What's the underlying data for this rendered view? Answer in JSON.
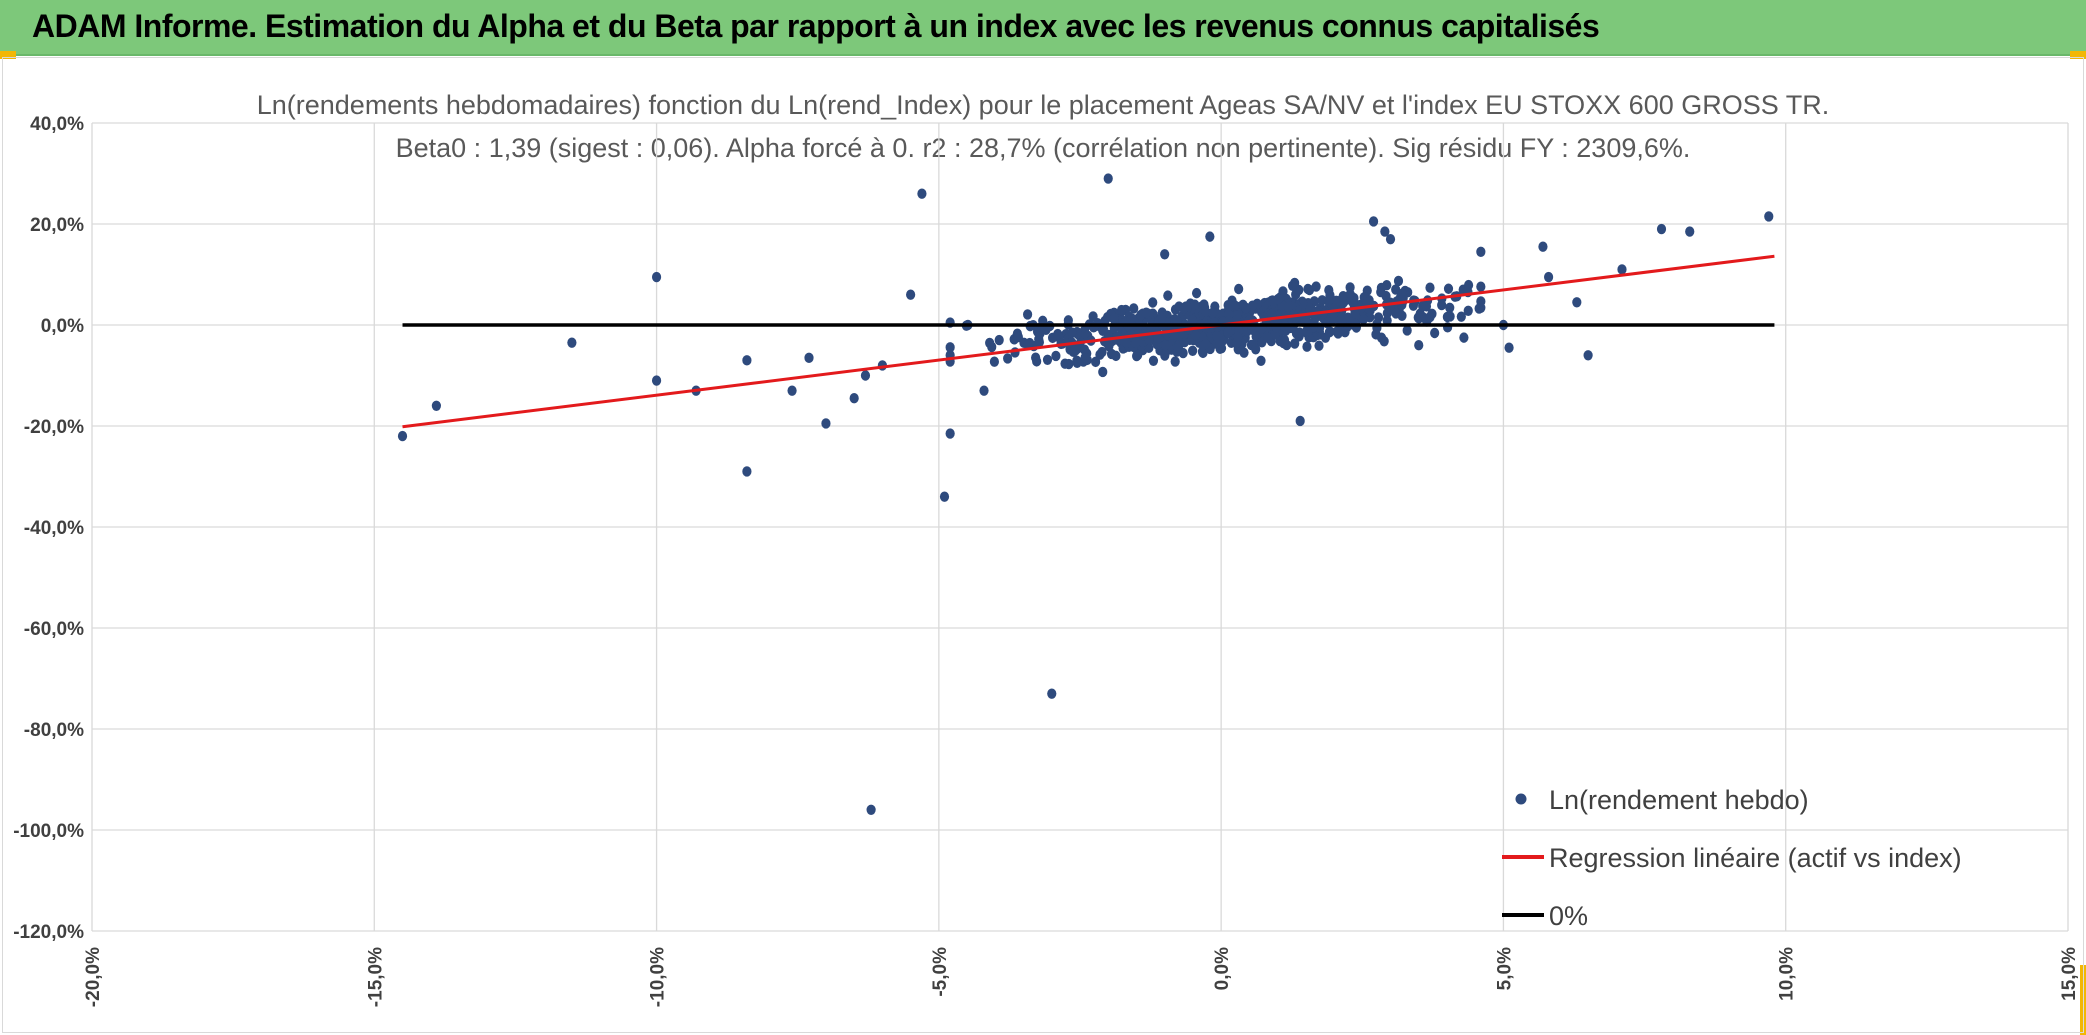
{
  "header": {
    "title": "ADAM Informe. Estimation du Alpha et du Beta par rapport à un index avec les revenus connus capitalisés"
  },
  "colors": {
    "header_bg": "#7dc87a",
    "point": "#2e4a7d",
    "regression": "#e31a1c",
    "zero_line": "#000000",
    "grid": "#d9d9d9"
  },
  "chart_data": {
    "type": "scatter",
    "title_line1": "Ln(rendements hebdomadaires) fonction du Ln(rend_Index) pour le placement Ageas SA/NV et l'index EU STOXX 600 GROSS TR.",
    "title_line2": "Beta0 : 1,39 (sigest : 0,06). Alpha forcé à 0. r2 : 28,7% (corrélation non pertinente). Sig résidu FY : 2309,6%.",
    "xlim": [
      -20,
      15
    ],
    "ylim": [
      -120,
      40
    ],
    "x_ticks": [
      -20,
      -15,
      -10,
      -5,
      0,
      5,
      10,
      15
    ],
    "y_ticks": [
      40,
      20,
      0,
      -20,
      -40,
      -60,
      -80,
      -100,
      -120
    ],
    "x_tick_labels": [
      "-20,0%",
      "-15,0%",
      "-10,0%",
      "-5,0%",
      "0,0%",
      "5,0%",
      "10,0%",
      "15,0%"
    ],
    "y_tick_labels": [
      "40,0%",
      "20,0%",
      "0,0%",
      "-20,0%",
      "-40,0%",
      "-60,0%",
      "-80,0%",
      "-100,0%",
      "-120,0%"
    ],
    "series": [
      {
        "name": "Ln(rendement hebdo)",
        "kind": "scatter",
        "color": "#2e4a7d",
        "outliers": [
          [
            -14.5,
            -22
          ],
          [
            -13.9,
            -16
          ],
          [
            -11.5,
            -3.5
          ],
          [
            -10,
            9.5
          ],
          [
            -10,
            -11
          ],
          [
            -9.3,
            -13
          ],
          [
            -8.4,
            -29
          ],
          [
            -8.4,
            -7
          ],
          [
            -7.6,
            -13
          ],
          [
            -7.3,
            -6.5
          ],
          [
            -7.0,
            -19.5
          ],
          [
            -6.5,
            -14.5
          ],
          [
            -6.2,
            -96
          ],
          [
            -6.3,
            -10
          ],
          [
            -5.5,
            6
          ],
          [
            -5.3,
            26
          ],
          [
            -4.9,
            -34
          ],
          [
            -4.8,
            -21.5
          ],
          [
            -3.0,
            -73
          ],
          [
            -2.0,
            29
          ],
          [
            -1.0,
            14
          ],
          [
            -0.2,
            17.5
          ],
          [
            1.4,
            -19
          ],
          [
            2.7,
            20.5
          ],
          [
            2.9,
            18.5
          ],
          [
            3.5,
            -4
          ],
          [
            4.3,
            -2.5
          ],
          [
            5.1,
            -4.5
          ],
          [
            5.7,
            15.5
          ],
          [
            5.8,
            9.5
          ],
          [
            6.3,
            4.5
          ],
          [
            6.5,
            -6
          ],
          [
            7.1,
            11
          ],
          [
            7.8,
            19
          ],
          [
            8.3,
            18.5
          ],
          [
            9.7,
            21.5
          ],
          [
            5.0,
            0
          ],
          [
            4.6,
            14.5
          ],
          [
            3.0,
            17
          ],
          [
            -6.0,
            -8
          ],
          [
            -4.2,
            -13
          ]
        ],
        "cloud": {
          "n": 820,
          "x_center": 0.2,
          "x_std": 1.8,
          "slope": 1.0,
          "noise_std": 2.6
        }
      },
      {
        "name": "Regression linéaire (actif vs index)",
        "kind": "line",
        "color": "#e31a1c",
        "points": [
          [
            -14.5,
            -20.155
          ],
          [
            9.8,
            13.622
          ]
        ]
      },
      {
        "name": "0%",
        "kind": "line",
        "color": "#000000",
        "points": [
          [
            -14.5,
            0
          ],
          [
            9.8,
            0
          ]
        ]
      }
    ],
    "legend": [
      "Ln(rendement hebdo)",
      "Regression linéaire (actif vs index)",
      "0%"
    ],
    "legend_position": "bottom-right"
  }
}
